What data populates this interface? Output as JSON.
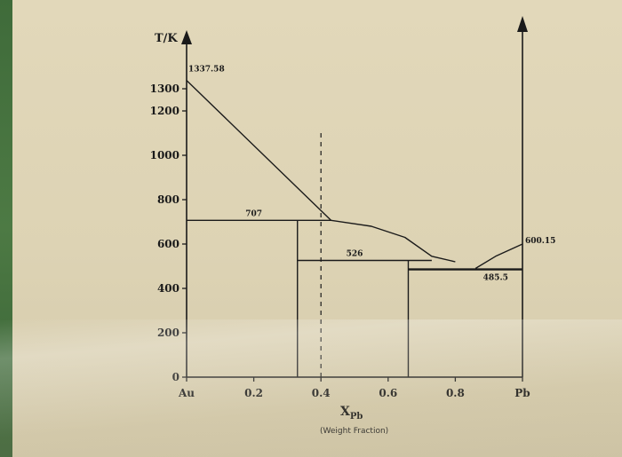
{
  "chart_data": {
    "type": "line",
    "title": "",
    "ylabel": "T/K",
    "xlabel": "X",
    "xlabel_sub": "Pb",
    "x_note": "(Weight Fraction)",
    "x_ticks": [
      {
        "x": 0,
        "label": "Au"
      },
      {
        "x": 0.2,
        "label": "0.2"
      },
      {
        "x": 0.4,
        "label": "0.4"
      },
      {
        "x": 0.6,
        "label": "0.6"
      },
      {
        "x": 0.8,
        "label": "0.8"
      },
      {
        "x": 1.0,
        "label": "Pb"
      }
    ],
    "y_ticks": [
      {
        "y": 0,
        "label": "0"
      },
      {
        "y": 200,
        "label": "200"
      },
      {
        "y": 400,
        "label": "400"
      },
      {
        "y": 600,
        "label": "600"
      },
      {
        "y": 800,
        "label": "800"
      },
      {
        "y": 1000,
        "label": "1000"
      },
      {
        "y": 1200,
        "label": "1200"
      },
      {
        "y": 1300,
        "label": "1300"
      }
    ],
    "annotations": [
      {
        "label": "1337.58",
        "x": 0.0,
        "y": 1337.58
      },
      {
        "label": "707",
        "x": 0.2,
        "y": 707
      },
      {
        "label": "526",
        "x": 0.5,
        "y": 526
      },
      {
        "label": "485.5",
        "x": 0.92,
        "y": 485.5
      },
      {
        "label": "600.15",
        "x": 1.0,
        "y": 600.15
      }
    ],
    "series": [
      {
        "points": [
          [
            0.0,
            1337.58
          ],
          [
            0.43,
            707
          ]
        ]
      },
      {
        "points": [
          [
            0.43,
            707
          ],
          [
            0.55,
            680
          ],
          [
            0.65,
            630
          ],
          [
            0.73,
            545
          ],
          [
            0.8,
            520
          ]
        ]
      },
      {
        "points": [
          [
            0.86,
            490
          ],
          [
            0.92,
            545
          ],
          [
            1.0,
            600.15
          ]
        ]
      },
      {
        "points": [
          [
            0.0,
            707
          ],
          [
            0.43,
            707
          ]
        ]
      },
      {
        "points": [
          [
            0.33,
            526
          ],
          [
            0.73,
            526
          ]
        ]
      },
      {
        "points": [
          [
            0.66,
            485.5
          ],
          [
            1.0,
            485.5
          ]
        ]
      }
    ],
    "verticals": [
      {
        "x": 0.33,
        "y_from": 0,
        "y_to": 707
      },
      {
        "x": 0.66,
        "y_from": 0,
        "y_to": 526
      }
    ],
    "dashed": {
      "x": 0.4,
      "y_from": 0,
      "y_to": 1120
    }
  }
}
